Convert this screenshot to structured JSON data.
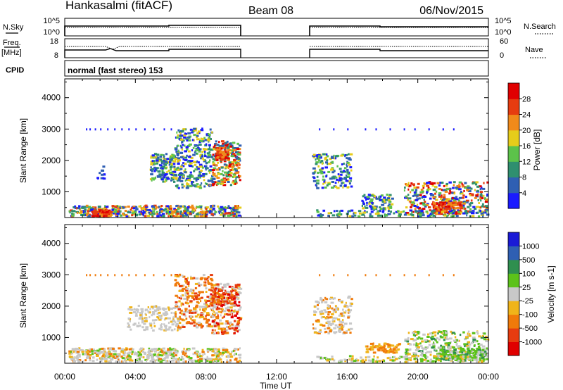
{
  "header": {
    "station": "Hankasalmi (fitACF)",
    "beam": "Beam 08",
    "date": "06/Nov/2015"
  },
  "time_axis": {
    "label": "Time UT",
    "ticks": [
      "00:00",
      "04:00",
      "08:00",
      "12:00",
      "16:00",
      "20:00",
      "00:00"
    ],
    "range_hours": [
      0,
      24
    ],
    "gap_hours": [
      10,
      14
    ]
  },
  "nsky_panel": {
    "left_label": "N.Sky",
    "right_label": "N.Search",
    "left_ticks": [
      "10^5",
      "10^0"
    ],
    "right_ticks": [
      "10^5",
      "10^0"
    ]
  },
  "freq_panel": {
    "left_label": "Freq.",
    "left_unit": "[MHz]",
    "right_label": "Nave",
    "left_ticks": [
      "18",
      "8"
    ],
    "right_ticks": [
      "60",
      "0"
    ]
  },
  "cpid": {
    "label": "CPID",
    "value": "normal (fast stereo) 153"
  },
  "chart_data": [
    {
      "type": "heatmap",
      "parameter": "power",
      "ylabel": "Slant Range [km]",
      "xlabel": "",
      "yticks": [
        1000,
        2000,
        3000,
        4000
      ],
      "ylim": [
        180,
        4600
      ],
      "xlim_hours": [
        0,
        24
      ],
      "colorbar": {
        "label": "Power [dB]",
        "ticks": [
          "4",
          "8",
          "12",
          "16",
          "20",
          "24",
          "28"
        ],
        "colors": [
          "#1a1aff",
          "#2f5fb3",
          "#2f8f6f",
          "#5cc24a",
          "#e6cc1a",
          "#f08a1a",
          "#e63c0f",
          "#e00000"
        ]
      }
    },
    {
      "type": "heatmap",
      "parameter": "velocity",
      "ylabel": "Slant Range [km]",
      "xlabel": "Time UT",
      "yticks": [
        1000,
        2000,
        3000,
        4000
      ],
      "ylim": [
        180,
        4600
      ],
      "xlim_hours": [
        0,
        24
      ],
      "colorbar": {
        "label": "Velocity [m s-1]",
        "ticks": [
          "1000",
          "500",
          "100",
          "25",
          "-25",
          "-100",
          "-500",
          "-1000"
        ],
        "colors": [
          "#1a1ad6",
          "#2f5fb3",
          "#2f8f4f",
          "#5cc21a",
          "#c8c8c8",
          "#f0b41a",
          "#f07a0a",
          "#e63c0f",
          "#e00000"
        ]
      }
    }
  ]
}
